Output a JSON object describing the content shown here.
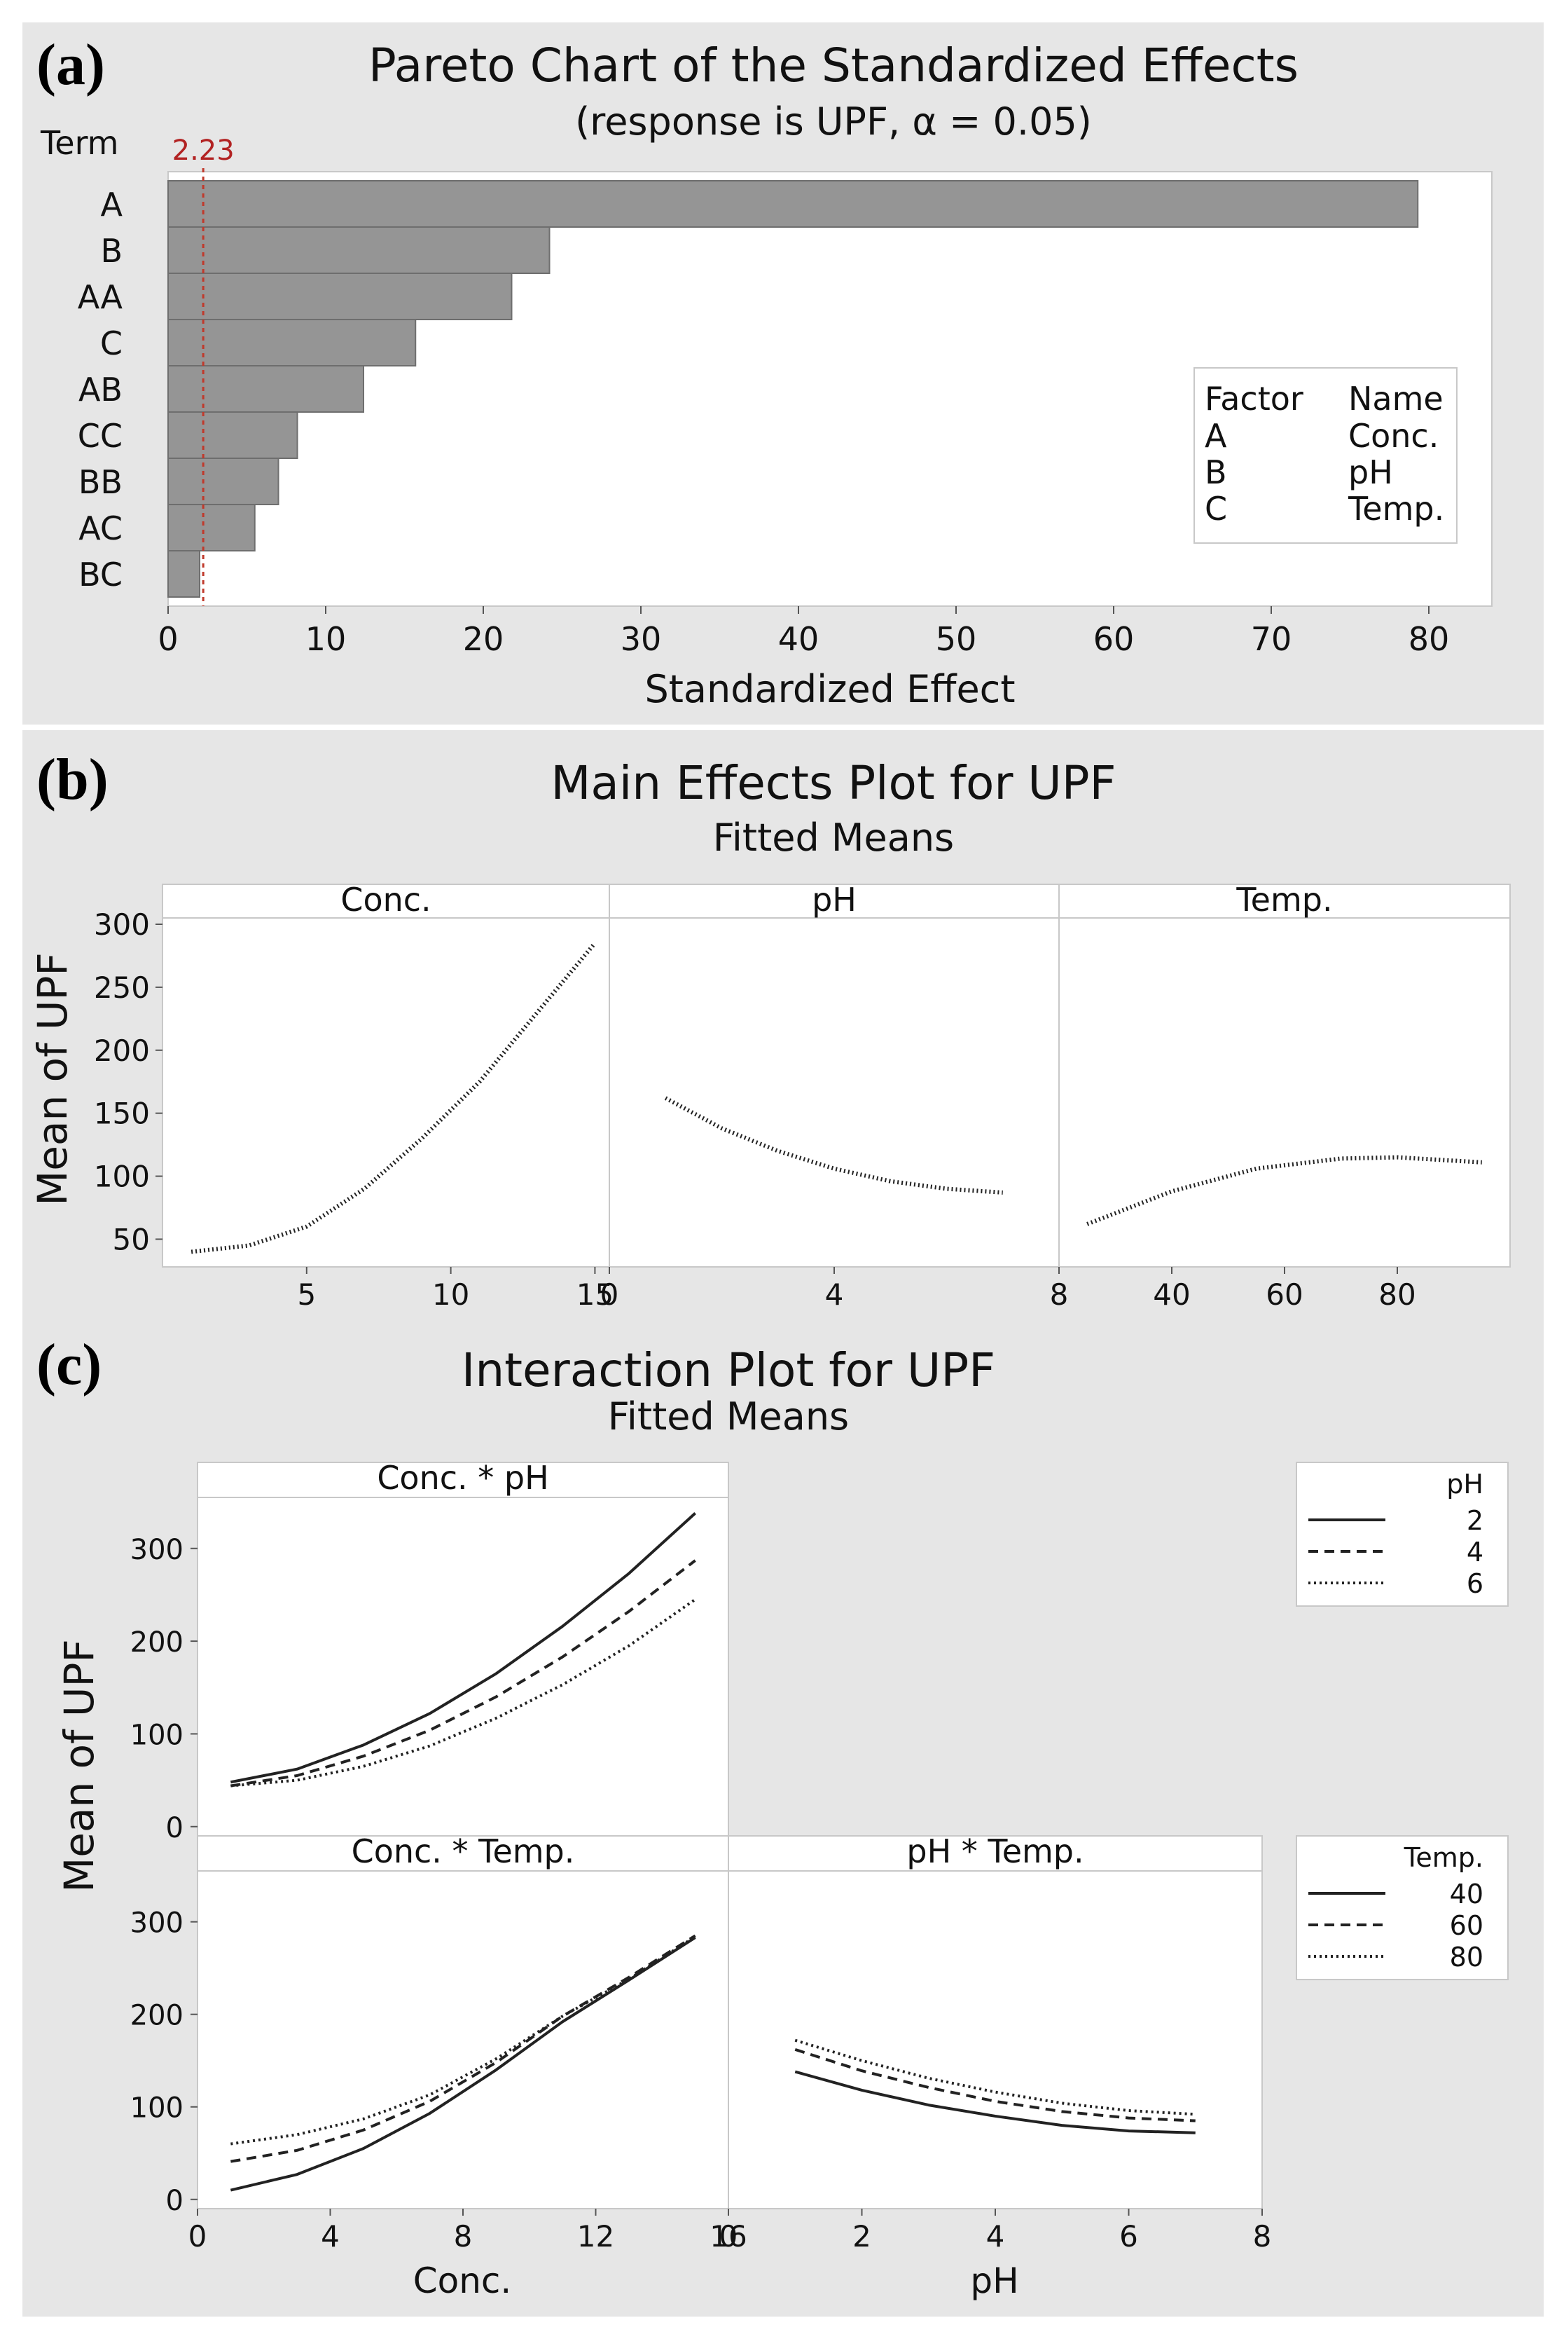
{
  "panels": {
    "a": {
      "letter": "(a)"
    },
    "b": {
      "letter": "(b)"
    },
    "c": {
      "letter": "(c)"
    }
  },
  "chart_data": [
    {
      "id": "pareto",
      "type": "bar",
      "orientation": "horizontal",
      "title": "Pareto Chart of the Standardized Effects",
      "subtitle": "(response is UPF, α = 0.05)",
      "ylabel": "Term",
      "xlabel": "Standardized Effect",
      "categories": [
        "A",
        "B",
        "AA",
        "C",
        "AB",
        "CC",
        "BB",
        "AC",
        "BC"
      ],
      "values": [
        79.3,
        24.2,
        21.8,
        15.7,
        12.4,
        8.2,
        7.0,
        5.5,
        2.0
      ],
      "reference_line": {
        "value": 2.23,
        "label": "2.23",
        "color": "#c0392b"
      },
      "xlim": [
        0,
        84
      ],
      "xticks": [
        "0",
        "10",
        "20",
        "30",
        "40",
        "50",
        "60",
        "70",
        "80"
      ],
      "bar_color": "#959595",
      "legend": {
        "position": "right",
        "header": [
          "Factor",
          "Name"
        ],
        "rows": [
          [
            "A",
            "Conc."
          ],
          [
            "B",
            "pH"
          ],
          [
            "C",
            "Temp."
          ]
        ]
      }
    },
    {
      "id": "main_effects",
      "type": "line",
      "title": "Main Effects Plot for UPF",
      "subtitle": "Fitted Means",
      "ylabel": "Mean of UPF",
      "ylim": [
        28,
        305
      ],
      "yticks": [
        "50",
        "100",
        "150",
        "200",
        "250",
        "300"
      ],
      "panels": [
        {
          "label": "Conc.",
          "x": [
            1,
            3,
            5,
            7,
            9,
            11,
            13,
            15
          ],
          "y": [
            40,
            45,
            60,
            90,
            130,
            175,
            230,
            285
          ],
          "xlim": [
            0,
            15.5
          ],
          "xticks": [
            "5",
            "10",
            "15"
          ]
        },
        {
          "label": "pH",
          "x": [
            1,
            2,
            3,
            4,
            5,
            6,
            7
          ],
          "y": [
            162,
            138,
            120,
            106,
            96,
            90,
            87
          ],
          "xlim": [
            0,
            8
          ],
          "xticks": [
            "0",
            "4",
            "8"
          ]
        },
        {
          "label": "Temp.",
          "x": [
            25,
            40,
            55,
            70,
            80,
            95
          ],
          "y": [
            62,
            88,
            106,
            114,
            115,
            111
          ],
          "xlim": [
            20,
            100
          ],
          "xticks": [
            "40",
            "60",
            "80"
          ]
        }
      ]
    },
    {
      "id": "interaction",
      "type": "line",
      "title": "Interaction Plot for UPF",
      "subtitle": "Fitted Means",
      "ylabel": "Mean of UPF",
      "ylim": [
        -10,
        355
      ],
      "yticks": [
        "0",
        "100",
        "200",
        "300"
      ],
      "panels": [
        {
          "label": "Conc. * pH",
          "xlim": [
            0,
            16
          ],
          "x": [
            1,
            3,
            5,
            7,
            9,
            11,
            13,
            15
          ],
          "series": [
            {
              "name": "2",
              "y": [
                48,
                62,
                88,
                122,
                165,
                216,
                273,
                338
              ]
            },
            {
              "name": "4",
              "y": [
                44,
                55,
                76,
                104,
                140,
                183,
                232,
                287
              ]
            },
            {
              "name": "6",
              "y": [
                44,
                50,
                65,
                87,
                117,
                153,
                195,
                245
              ]
            }
          ]
        },
        {
          "label": "Conc. * Temp.",
          "xlim": [
            0,
            16
          ],
          "xlabel": "Conc.",
          "xticks": [
            "0",
            "4",
            "8",
            "12",
            "16"
          ],
          "x": [
            1,
            3,
            5,
            7,
            9,
            11,
            13,
            15
          ],
          "series": [
            {
              "name": "40",
              "y": [
                10,
                27,
                55,
                93,
                140,
                192,
                237,
                283
              ]
            },
            {
              "name": "60",
              "y": [
                41,
                53,
                75,
                106,
                148,
                198,
                240,
                285
              ]
            },
            {
              "name": "80",
              "y": [
                60,
                70,
                87,
                113,
                152,
                198,
                238,
                284
              ]
            }
          ]
        },
        {
          "label": "pH * Temp.",
          "xlim": [
            0,
            8
          ],
          "xlabel": "pH",
          "xticks": [
            "0",
            "2",
            "4",
            "6",
            "8"
          ],
          "x": [
            1,
            2,
            3,
            4,
            5,
            6,
            7
          ],
          "series": [
            {
              "name": "40",
              "y": [
                138,
                118,
                102,
                90,
                80,
                74,
                72
              ]
            },
            {
              "name": "60",
              "y": [
                162,
                139,
                121,
                106,
                95,
                88,
                85
              ]
            },
            {
              "name": "80",
              "y": [
                172,
                150,
                131,
                116,
                104,
                96,
                92
              ]
            }
          ]
        }
      ],
      "legends": [
        {
          "title": "pH",
          "entries": [
            "2",
            "4",
            "6"
          ]
        },
        {
          "title": "Temp.",
          "entries": [
            "40",
            "60",
            "80"
          ]
        }
      ]
    }
  ]
}
